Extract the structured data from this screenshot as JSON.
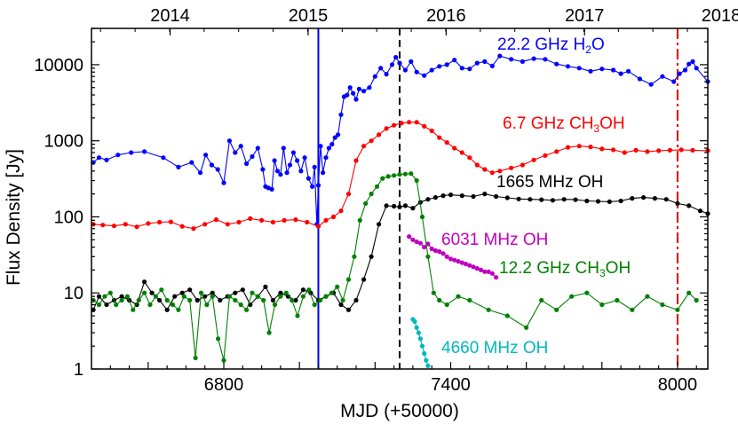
{
  "chart_data": {
    "type": "line",
    "xlabel": "MJD (+50000)",
    "ylabel": "Flux Density [Jy]",
    "xlim": [
      6450,
      8080
    ],
    "ylim": [
      1,
      30000
    ],
    "yscale": "log",
    "x_ticks": [
      {
        "value": 6800,
        "label": "6800"
      },
      {
        "value": 7400,
        "label": "7400"
      },
      {
        "value": 8000,
        "label": "8000"
      }
    ],
    "y_ticks": [
      {
        "value": 1,
        "label": "1"
      },
      {
        "value": 10,
        "label": "10"
      },
      {
        "value": 100,
        "label": "100"
      },
      {
        "value": 1000,
        "label": "1000"
      },
      {
        "value": 10000,
        "label": "10000"
      }
    ],
    "top_axis_ticks": [
      {
        "value": 6658,
        "label": "2014"
      },
      {
        "value": 7023,
        "label": "2015"
      },
      {
        "value": 7388,
        "label": "2016"
      },
      {
        "value": 7754,
        "label": "2017"
      },
      {
        "value": 8119,
        "label": "2018"
      }
    ],
    "vertical_lines": [
      {
        "x": 7050,
        "color": "#0000ff",
        "style": "solid"
      },
      {
        "x": 7265,
        "color": "#000000",
        "style": "dashed"
      },
      {
        "x": 8000,
        "color": "#e00000",
        "style": "dashdot"
      }
    ],
    "series": [
      {
        "name": "22.2 GHz H2O",
        "label_main": "22.2 GHz H",
        "label_sub": "2",
        "label_tail": "O",
        "color": "#0000ff",
        "label_x": 6000,
        "label_y": 0,
        "x": [
          6455,
          6470,
          6490,
          6520,
          6555,
          6590,
          6640,
          6680,
          6715,
          6738,
          6752,
          6768,
          6784,
          6800,
          6815,
          6830,
          6845,
          6860,
          6875,
          6890,
          6903,
          6910,
          6918,
          6927,
          6934,
          6942,
          6950,
          6958,
          6967,
          6975,
          6984,
          6994,
          7004,
          7014,
          7024,
          7034,
          7040,
          7046,
          7050,
          7056,
          7062,
          7070,
          7078,
          7086,
          7094,
          7102,
          7110,
          7118,
          7126,
          7134,
          7142,
          7150,
          7158,
          7170,
          7185,
          7200,
          7215,
          7230,
          7245,
          7255,
          7265,
          7280,
          7295,
          7310,
          7330,
          7350,
          7370,
          7390,
          7410,
          7430,
          7450,
          7470,
          7490,
          7510,
          7530,
          7560,
          7590,
          7620,
          7650,
          7680,
          7710,
          7740,
          7770,
          7800,
          7830,
          7850,
          7870,
          7900,
          7930,
          7960,
          7990,
          8005,
          8020,
          8030,
          8040,
          8050,
          8080
        ],
        "y": [
          520,
          600,
          560,
          650,
          700,
          720,
          600,
          450,
          520,
          380,
          650,
          480,
          420,
          280,
          1000,
          700,
          850,
          500,
          620,
          800,
          420,
          250,
          240,
          230,
          550,
          400,
          360,
          800,
          380,
          480,
          700,
          550,
          400,
          600,
          320,
          250,
          450,
          80,
          260,
          850,
          380,
          600,
          800,
          900,
          1100,
          1200,
          2200,
          3800,
          4000,
          5000,
          4200,
          3500,
          4800,
          4500,
          5000,
          7000,
          9000,
          7500,
          10000,
          12500,
          10500,
          8500,
          11000,
          8000,
          7200,
          8500,
          9500,
          10000,
          11500,
          9000,
          8800,
          10500,
          11000,
          9600,
          13000,
          11800,
          11000,
          12000,
          11800,
          10200,
          9500,
          9000,
          8200,
          8800,
          8500,
          7600,
          8200,
          6500,
          5500,
          7000,
          6000,
          7600,
          8500,
          10200,
          11000,
          9000,
          6000
        ]
      },
      {
        "name": "6.7 GHz CH3OH",
        "label_main": "6.7 GHz CH",
        "label_sub": "3",
        "label_tail": "OH",
        "color": "#ff0000",
        "x": [
          6455,
          6480,
          6510,
          6540,
          6570,
          6600,
          6630,
          6660,
          6690,
          6720,
          6750,
          6780,
          6810,
          6840,
          6870,
          6900,
          6930,
          6960,
          6990,
          7020,
          7050,
          7070,
          7090,
          7110,
          7130,
          7150,
          7170,
          7190,
          7210,
          7230,
          7250,
          7270,
          7290,
          7310,
          7330,
          7350,
          7370,
          7390,
          7410,
          7430,
          7450,
          7470,
          7490,
          7510,
          7530,
          7560,
          7590,
          7620,
          7650,
          7680,
          7710,
          7740,
          7770,
          7800,
          7830,
          7860,
          7890,
          7920,
          7950,
          7980,
          8010,
          8040,
          8080
        ],
        "y": [
          80,
          78,
          76,
          80,
          74,
          82,
          85,
          86,
          75,
          70,
          80,
          92,
          80,
          85,
          95,
          90,
          85,
          90,
          92,
          85,
          75,
          90,
          100,
          120,
          200,
          550,
          850,
          1000,
          1200,
          1450,
          1600,
          1700,
          1750,
          1750,
          1550,
          1350,
          1100,
          950,
          800,
          700,
          600,
          480,
          420,
          380,
          400,
          440,
          480,
          560,
          640,
          720,
          820,
          850,
          830,
          780,
          760,
          700,
          750,
          720,
          740,
          750,
          760,
          750,
          740
        ]
      },
      {
        "name": "1665 MHz OH",
        "label_main": "1665 MHz OH",
        "label_sub": "",
        "label_tail": "",
        "color": "#000000",
        "x": [
          6455,
          6470,
          6490,
          6510,
          6530,
          6550,
          6570,
          6590,
          6610,
          6630,
          6650,
          6670,
          6690,
          6710,
          6730,
          6750,
          6770,
          6790,
          6810,
          6830,
          6850,
          6870,
          6890,
          6910,
          6930,
          6950,
          6970,
          6990,
          7010,
          7030,
          7050,
          7070,
          7090,
          7110,
          7130,
          7150,
          7170,
          7190,
          7210,
          7230,
          7250,
          7265,
          7280,
          7300,
          7320,
          7340,
          7360,
          7380,
          7400,
          7430,
          7460,
          7490,
          7520,
          7550,
          7580,
          7610,
          7640,
          7670,
          7700,
          7730,
          7760,
          7790,
          7820,
          7850,
          7880,
          7910,
          7940,
          7970,
          8000,
          8030,
          8060,
          8080
        ],
        "y": [
          6,
          9,
          7,
          8,
          9,
          8,
          7,
          14,
          10,
          8,
          6,
          9,
          10,
          11,
          8,
          9,
          10,
          8,
          9,
          10,
          11,
          7,
          9,
          12,
          8,
          10,
          9,
          8,
          11,
          10,
          8,
          9,
          10,
          7,
          6,
          8,
          15,
          30,
          80,
          140,
          138,
          135,
          140,
          130,
          155,
          170,
          180,
          190,
          195,
          190,
          185,
          200,
          185,
          178,
          172,
          170,
          168,
          165,
          170,
          168,
          162,
          160,
          158,
          162,
          175,
          180,
          175,
          170,
          150,
          140,
          120,
          110
        ]
      },
      {
        "name": "6031 MHz OH",
        "label_main": "6031 MHz OH",
        "label_sub": "",
        "label_tail": "",
        "color": "#c000c0",
        "x": [
          7290,
          7300,
          7310,
          7320,
          7330,
          7340,
          7350,
          7360,
          7370,
          7380,
          7390,
          7400,
          7410,
          7420,
          7430,
          7440,
          7450,
          7460,
          7470,
          7480,
          7490,
          7500,
          7510,
          7520
        ],
        "y": [
          55,
          50,
          47,
          45,
          40,
          44,
          38,
          36,
          35,
          33,
          30,
          28,
          27,
          26,
          25,
          24,
          23,
          22,
          21,
          20,
          19,
          19,
          18,
          16
        ]
      },
      {
        "name": "12.2 GHz CH3OH",
        "label_main": "12.2 GHz CH",
        "label_sub": "3",
        "label_tail": "OH",
        "color": "#008000",
        "x": [
          6455,
          6470,
          6485,
          6500,
          6515,
          6530,
          6545,
          6560,
          6575,
          6590,
          6605,
          6620,
          6635,
          6650,
          6665,
          6680,
          6695,
          6710,
          6725,
          6740,
          6755,
          6770,
          6785,
          6800,
          6815,
          6830,
          6845,
          6860,
          6875,
          6890,
          6905,
          6920,
          6935,
          6950,
          6965,
          6980,
          6995,
          7010,
          7025,
          7040,
          7055,
          7070,
          7085,
          7100,
          7115,
          7130,
          7145,
          7160,
          7175,
          7190,
          7205,
          7220,
          7235,
          7250,
          7265,
          7280,
          7295,
          7310,
          7325,
          7340,
          7355,
          7370,
          7390,
          7420,
          7450,
          7500,
          7550,
          7600,
          7640,
          7680,
          7720,
          7760,
          7800,
          7840,
          7880,
          7920,
          7960,
          8000,
          8030,
          8050
        ],
        "y": [
          8,
          7,
          9,
          10,
          7,
          8,
          9,
          6,
          8,
          10,
          7,
          9,
          11,
          8,
          7,
          6,
          9,
          8,
          1.4,
          10,
          7,
          9,
          2.5,
          1.3,
          9,
          8,
          7,
          6,
          10,
          9,
          8,
          3,
          7,
          9,
          10,
          8,
          5,
          9,
          11,
          7,
          8,
          9,
          10,
          12,
          8,
          15,
          30,
          90,
          150,
          200,
          250,
          320,
          340,
          350,
          360,
          365,
          370,
          300,
          100,
          30,
          10,
          8,
          7,
          9,
          8,
          6,
          5,
          3.5,
          8,
          6,
          9,
          10,
          7,
          8,
          6,
          9,
          7,
          6,
          10,
          8
        ]
      },
      {
        "name": "4660 MHz OH",
        "label_main": "4660 MHz OH",
        "label_sub": "",
        "label_tail": "",
        "color": "#00b8c0",
        "x": [
          7300,
          7305,
          7310,
          7315,
          7320,
          7325,
          7330,
          7335,
          7340
        ],
        "y": [
          4.5,
          4.2,
          3.5,
          3.0,
          2.5,
          2.0,
          1.6,
          1.3,
          1.1
        ]
      }
    ]
  }
}
